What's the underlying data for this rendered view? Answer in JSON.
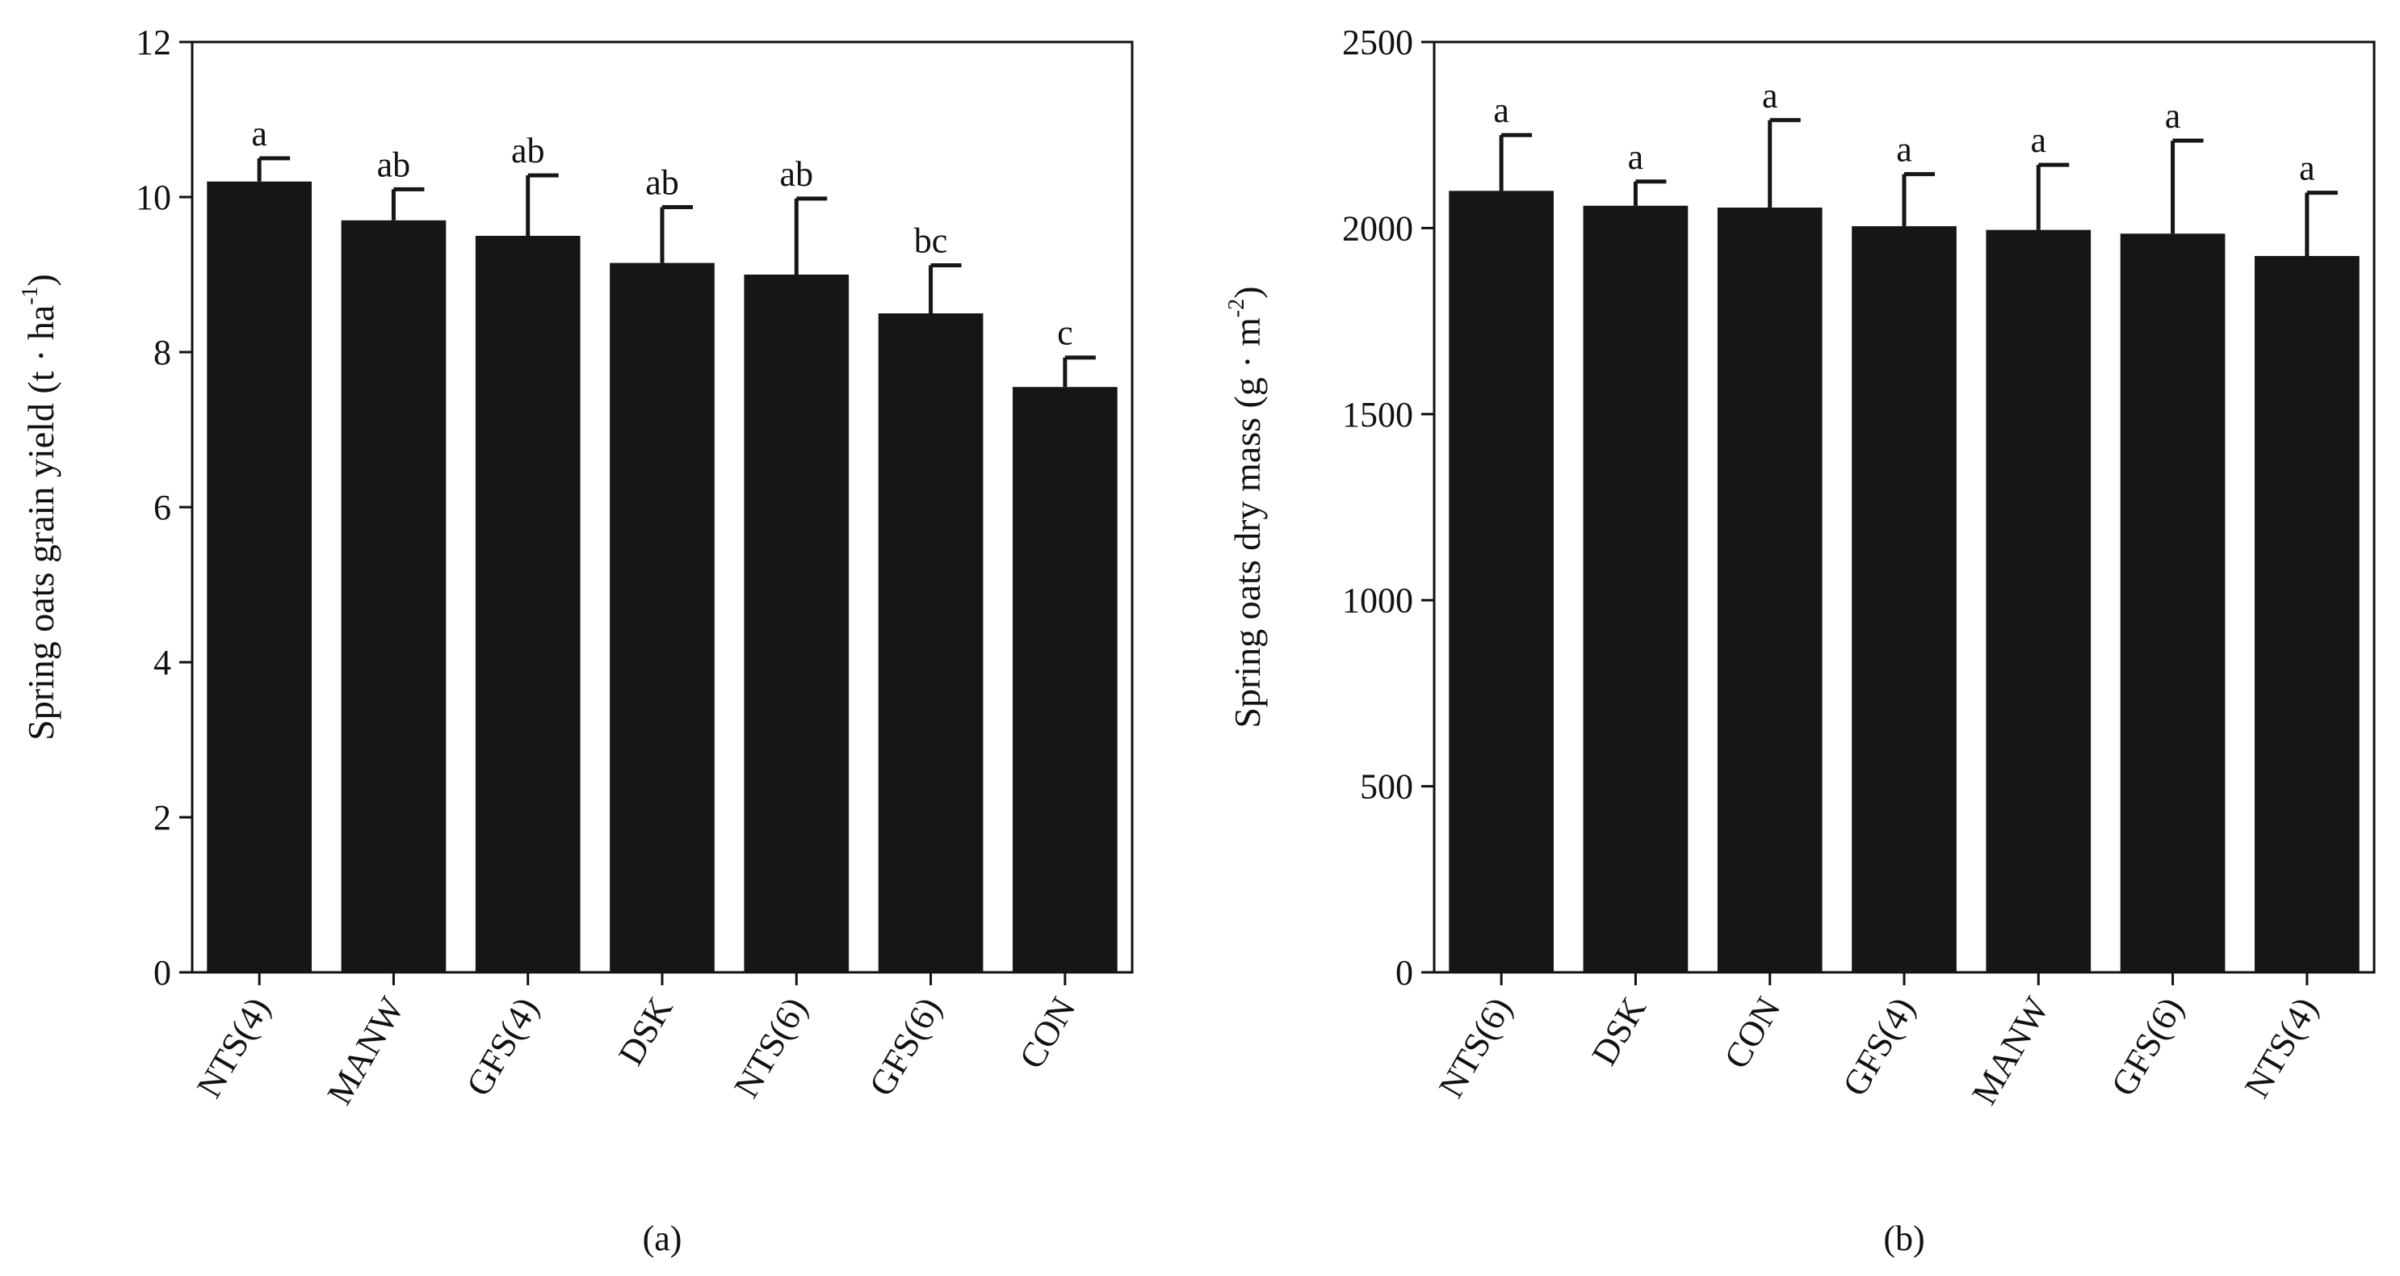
{
  "chart_data": [
    {
      "type": "bar",
      "panel_label": "(a)",
      "ylabel": {
        "main": "Spring oats grain yield (t · ha",
        "sup": "-1",
        "close": ")"
      },
      "xlabel": "",
      "ylim": [
        0,
        12
      ],
      "yticks": [
        0,
        2,
        4,
        6,
        8,
        10,
        12
      ],
      "categories": [
        "NTS(4)",
        "MANW",
        "GFS(4)",
        "DSK",
        "NTS(6)",
        "GFS(6)",
        "CON"
      ],
      "values": [
        10.2,
        9.7,
        9.5,
        9.15,
        9.0,
        8.5,
        7.55
      ],
      "errors": [
        0.3,
        0.4,
        0.78,
        0.72,
        0.98,
        0.62,
        0.38
      ],
      "significance": [
        "a",
        "ab",
        "ab",
        "ab",
        "ab",
        "bc",
        "c"
      ],
      "bar_color": "#161616"
    },
    {
      "type": "bar",
      "panel_label": "(b)",
      "ylabel": {
        "main": "Spring oats dry mass (g · m",
        "sup": "-2",
        "close": ")"
      },
      "xlabel": "",
      "ylim": [
        0,
        2500
      ],
      "yticks": [
        0,
        500,
        1000,
        1500,
        2000,
        2500
      ],
      "categories": [
        "NTS(6)",
        "DSK",
        "CON",
        "GFS(4)",
        "MANW",
        "GFS(6)",
        "NTS(4)"
      ],
      "values": [
        2100,
        2060,
        2055,
        2005,
        1995,
        1985,
        1925
      ],
      "errors": [
        150,
        65,
        235,
        140,
        175,
        250,
        170
      ],
      "significance": [
        "a",
        "a",
        "a",
        "a",
        "a",
        "a",
        "a"
      ],
      "bar_color": "#161616"
    }
  ]
}
